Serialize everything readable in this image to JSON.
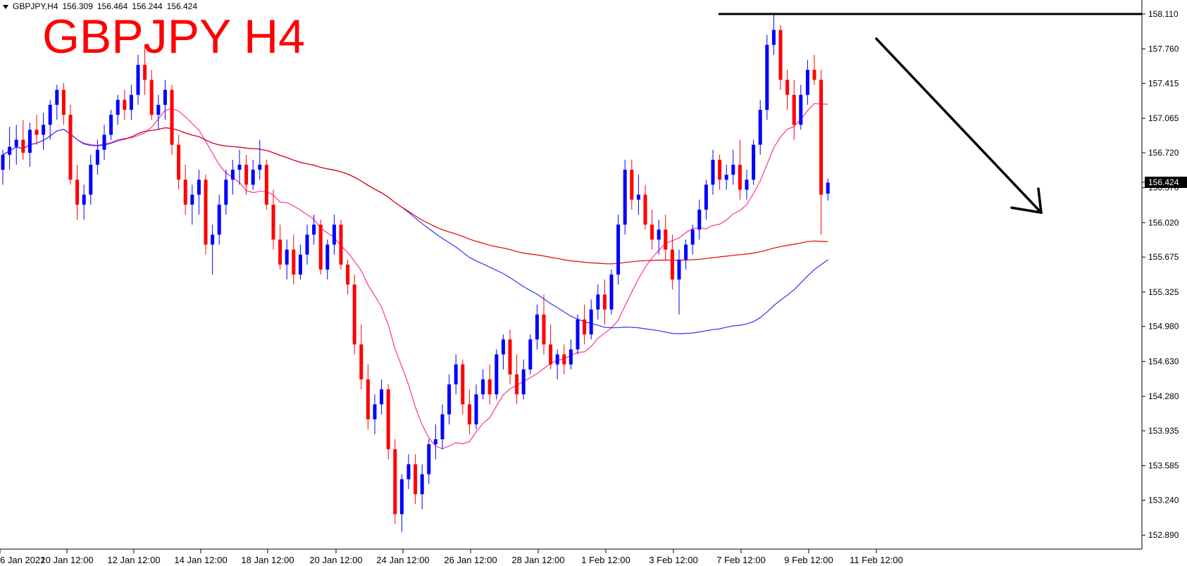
{
  "header": {
    "symbol": "GBPJPY,H4",
    "open": "156.309",
    "high": "156.464",
    "low": "156.244",
    "close": "156.424"
  },
  "title_overlay": "GBPJPY H4",
  "colors": {
    "bull": "#0000ff",
    "bear": "#ff0000",
    "ma_fast": "#ff3399",
    "ma_mid": "#e60000",
    "ma_slow": "#3333ff",
    "annotation": "#000000"
  },
  "chart_data": {
    "type": "candlestick",
    "title": "GBPJPY H4",
    "ylim": [
      152.75,
      158.25
    ],
    "y_ticks": [
      "158.110",
      "157.760",
      "157.415",
      "157.065",
      "156.720",
      "156.370",
      "156.020",
      "155.675",
      "155.325",
      "154.980",
      "154.630",
      "154.280",
      "153.935",
      "153.585",
      "153.240",
      "152.890"
    ],
    "x_ticks": [
      "6 Jan 2022",
      "10 Jan 12:00",
      "12 Jan 12:00",
      "14 Jan 12:00",
      "18 Jan 12:00",
      "20 Jan 12:00",
      "24 Jan 12:00",
      "26 Jan 12:00",
      "28 Jan 12:00",
      "1 Feb 12:00",
      "3 Feb 12:00",
      "7 Feb 12:00",
      "9 Feb 12:00",
      "11 Feb 12:00"
    ],
    "current_price": "156.424",
    "candles": [
      [
        156.55,
        156.75,
        156.4,
        156.7
      ],
      [
        156.7,
        156.98,
        156.55,
        156.78
      ],
      [
        156.78,
        157.0,
        156.6,
        156.85
      ],
      [
        156.85,
        157.05,
        156.65,
        156.72
      ],
      [
        156.72,
        157.02,
        156.58,
        156.95
      ],
      [
        156.95,
        157.1,
        156.8,
        156.9
      ],
      [
        156.9,
        157.12,
        156.75,
        157.0
      ],
      [
        157.0,
        157.25,
        156.85,
        157.2
      ],
      [
        157.2,
        157.4,
        157.05,
        157.35
      ],
      [
        157.35,
        157.42,
        157.0,
        157.1
      ],
      [
        157.1,
        157.2,
        156.4,
        156.45
      ],
      [
        156.45,
        156.6,
        156.05,
        156.2
      ],
      [
        156.2,
        156.4,
        156.05,
        156.3
      ],
      [
        156.3,
        156.7,
        156.2,
        156.6
      ],
      [
        156.6,
        156.85,
        156.5,
        156.75
      ],
      [
        156.75,
        157.0,
        156.65,
        156.9
      ],
      [
        156.9,
        157.15,
        156.85,
        157.1
      ],
      [
        157.1,
        157.3,
        157.0,
        157.25
      ],
      [
        157.25,
        157.35,
        157.05,
        157.15
      ],
      [
        157.15,
        157.4,
        157.05,
        157.3
      ],
      [
        157.3,
        157.7,
        157.2,
        157.6
      ],
      [
        157.6,
        157.8,
        157.3,
        157.45
      ],
      [
        157.45,
        157.55,
        157.05,
        157.1
      ],
      [
        157.1,
        157.3,
        156.95,
        157.2
      ],
      [
        157.2,
        157.45,
        157.05,
        157.35
      ],
      [
        157.35,
        157.4,
        156.7,
        156.8
      ],
      [
        156.8,
        156.9,
        156.35,
        156.45
      ],
      [
        156.45,
        156.6,
        156.1,
        156.2
      ],
      [
        156.2,
        156.4,
        156.0,
        156.3
      ],
      [
        156.3,
        156.55,
        156.1,
        156.45
      ],
      [
        156.45,
        156.5,
        155.7,
        155.8
      ],
      [
        155.8,
        156.0,
        155.5,
        155.9
      ],
      [
        155.9,
        156.3,
        155.8,
        156.2
      ],
      [
        156.2,
        156.55,
        156.1,
        156.45
      ],
      [
        156.45,
        156.65,
        156.3,
        156.55
      ],
      [
        156.55,
        156.75,
        156.4,
        156.6
      ],
      [
        156.6,
        156.7,
        156.3,
        156.4
      ],
      [
        156.4,
        156.65,
        156.35,
        156.55
      ],
      [
        156.55,
        156.85,
        156.45,
        156.6
      ],
      [
        156.6,
        156.65,
        156.15,
        156.2
      ],
      [
        156.2,
        156.35,
        155.75,
        155.85
      ],
      [
        155.85,
        156.0,
        155.55,
        155.6
      ],
      [
        155.6,
        155.85,
        155.45,
        155.75
      ],
      [
        155.75,
        155.9,
        155.4,
        155.5
      ],
      [
        155.5,
        155.8,
        155.45,
        155.7
      ],
      [
        155.7,
        156.0,
        155.6,
        155.9
      ],
      [
        155.9,
        156.1,
        155.8,
        156.0
      ],
      [
        156.0,
        156.05,
        155.5,
        155.55
      ],
      [
        155.55,
        155.85,
        155.45,
        155.8
      ],
      [
        155.8,
        156.1,
        155.7,
        156.0
      ],
      [
        156.0,
        156.05,
        155.55,
        155.6
      ],
      [
        155.6,
        155.65,
        155.3,
        155.4
      ],
      [
        155.4,
        155.5,
        154.7,
        154.8
      ],
      [
        154.8,
        155.0,
        154.35,
        154.45
      ],
      [
        154.45,
        154.6,
        153.95,
        154.05
      ],
      [
        154.05,
        154.3,
        153.9,
        154.2
      ],
      [
        154.2,
        154.45,
        154.1,
        154.35
      ],
      [
        154.35,
        154.4,
        153.65,
        153.75
      ],
      [
        153.75,
        153.85,
        153.0,
        153.1
      ],
      [
        153.1,
        153.5,
        152.92,
        153.45
      ],
      [
        153.45,
        153.7,
        153.35,
        153.6
      ],
      [
        153.6,
        153.7,
        153.2,
        153.3
      ],
      [
        153.3,
        153.6,
        153.15,
        153.5
      ],
      [
        153.5,
        153.85,
        153.4,
        153.8
      ],
      [
        153.8,
        154.0,
        153.65,
        153.85
      ],
      [
        153.85,
        154.2,
        153.75,
        154.1
      ],
      [
        154.1,
        154.5,
        154.0,
        154.4
      ],
      [
        154.4,
        154.7,
        154.3,
        154.6
      ],
      [
        154.6,
        154.65,
        154.1,
        154.2
      ],
      [
        154.2,
        154.35,
        153.9,
        154.0
      ],
      [
        154.0,
        154.4,
        153.95,
        154.3
      ],
      [
        154.3,
        154.55,
        154.25,
        154.45
      ],
      [
        154.45,
        154.6,
        154.2,
        154.3
      ],
      [
        154.3,
        154.75,
        154.25,
        154.7
      ],
      [
        154.7,
        154.9,
        154.55,
        154.85
      ],
      [
        154.85,
        154.95,
        154.4,
        154.5
      ],
      [
        154.5,
        154.7,
        154.2,
        154.3
      ],
      [
        154.3,
        154.65,
        154.25,
        154.55
      ],
      [
        154.55,
        154.9,
        154.5,
        154.85
      ],
      [
        154.85,
        155.2,
        154.75,
        155.1
      ],
      [
        155.1,
        155.3,
        154.7,
        154.8
      ],
      [
        154.8,
        155.0,
        154.55,
        154.6
      ],
      [
        154.6,
        154.75,
        154.45,
        154.7
      ],
      [
        154.7,
        154.8,
        154.5,
        154.6
      ],
      [
        154.6,
        154.85,
        154.55,
        154.75
      ],
      [
        154.75,
        155.1,
        154.7,
        155.05
      ],
      [
        155.05,
        155.2,
        154.8,
        154.9
      ],
      [
        154.9,
        155.25,
        154.85,
        155.15
      ],
      [
        155.15,
        155.4,
        155.05,
        155.3
      ],
      [
        155.3,
        155.45,
        155.0,
        155.15
      ],
      [
        155.15,
        155.55,
        155.1,
        155.5
      ],
      [
        155.5,
        156.1,
        155.4,
        156.0
      ],
      [
        156.0,
        156.65,
        155.9,
        156.55
      ],
      [
        156.55,
        156.65,
        156.15,
        156.25
      ],
      [
        156.25,
        156.5,
        156.1,
        156.3
      ],
      [
        156.3,
        156.4,
        155.95,
        156.0
      ],
      [
        156.0,
        156.15,
        155.75,
        155.85
      ],
      [
        155.85,
        156.05,
        155.7,
        155.95
      ],
      [
        155.95,
        156.1,
        155.65,
        155.75
      ],
      [
        155.75,
        155.9,
        155.35,
        155.45
      ],
      [
        155.45,
        155.75,
        155.1,
        155.65
      ],
      [
        155.65,
        155.85,
        155.55,
        155.8
      ],
      [
        155.8,
        156.0,
        155.7,
        155.95
      ],
      [
        155.95,
        156.25,
        155.85,
        156.15
      ],
      [
        156.15,
        156.45,
        156.05,
        156.4
      ],
      [
        156.4,
        156.75,
        156.3,
        156.65
      ],
      [
        156.65,
        156.7,
        156.35,
        156.45
      ],
      [
        156.45,
        156.6,
        156.35,
        156.5
      ],
      [
        156.5,
        156.75,
        156.4,
        156.6
      ],
      [
        156.6,
        156.85,
        156.25,
        156.35
      ],
      [
        156.35,
        156.55,
        156.25,
        156.45
      ],
      [
        156.45,
        156.85,
        156.4,
        156.8
      ],
      [
        156.8,
        157.25,
        156.7,
        157.15
      ],
      [
        157.15,
        157.9,
        157.05,
        157.8
      ],
      [
        157.8,
        158.12,
        157.7,
        157.95
      ],
      [
        157.95,
        158.0,
        157.35,
        157.45
      ],
      [
        157.45,
        157.55,
        157.15,
        157.3
      ],
      [
        157.3,
        157.45,
        156.85,
        157.0
      ],
      [
        157.0,
        157.4,
        156.95,
        157.3
      ],
      [
        157.3,
        157.65,
        157.2,
        157.55
      ],
      [
        157.55,
        157.7,
        157.4,
        157.45
      ],
      [
        157.45,
        157.55,
        155.9,
        156.3
      ],
      [
        156.31,
        156.46,
        156.24,
        156.42
      ]
    ]
  }
}
